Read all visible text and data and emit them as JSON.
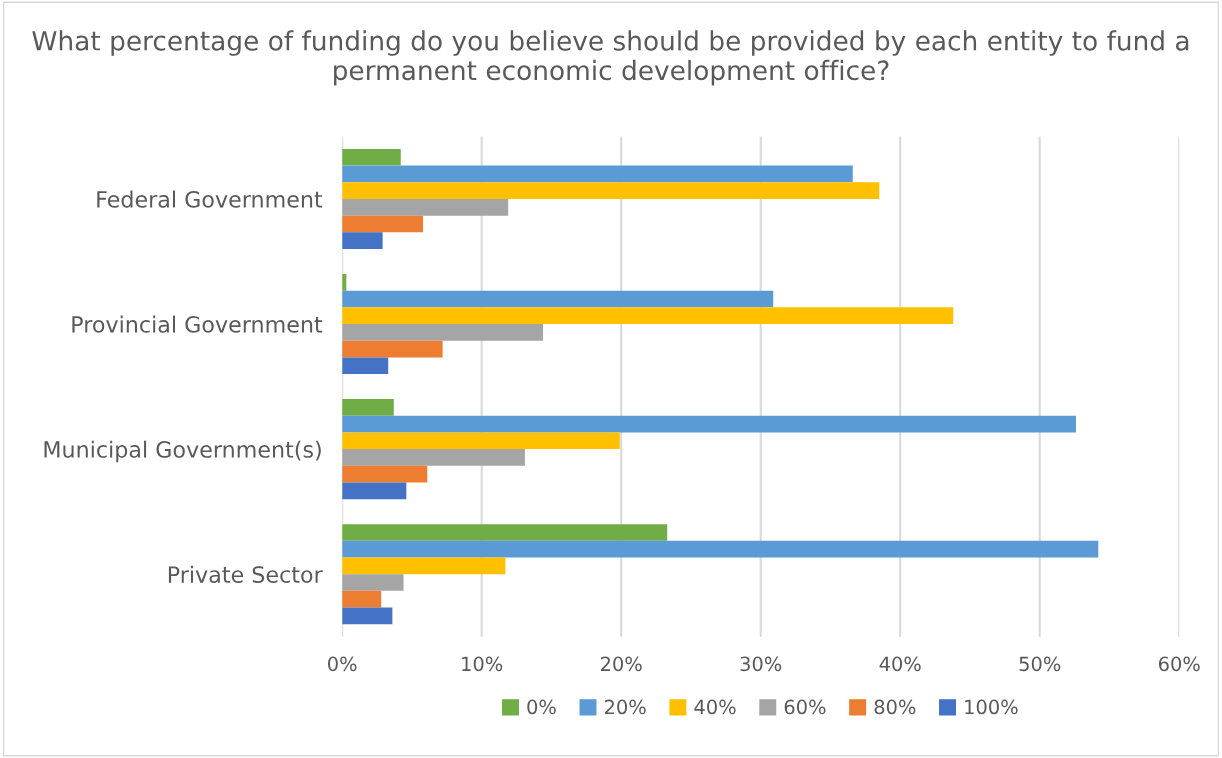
{
  "chart_data": {
    "type": "bar",
    "orientation": "horizontal",
    "title": "What percentage of funding do you believe should be provided by each entity to fund a permanent economic development office?",
    "categories": [
      "Federal Government",
      "Provincial Government",
      "Municipal Government(s)",
      "Private Sector"
    ],
    "series": [
      {
        "name": "0%",
        "color": "#70ad47",
        "values": [
          4.2,
          0.3,
          3.7,
          23.3
        ]
      },
      {
        "name": "20%",
        "color": "#5b9bd5",
        "values": [
          36.6,
          30.9,
          52.6,
          54.2
        ]
      },
      {
        "name": "40%",
        "color": "#ffc000",
        "values": [
          38.5,
          43.8,
          19.9,
          11.7
        ]
      },
      {
        "name": "60%",
        "color": "#a5a5a5",
        "values": [
          11.9,
          14.4,
          13.1,
          4.4
        ]
      },
      {
        "name": "80%",
        "color": "#ed7d31",
        "values": [
          5.8,
          7.2,
          6.1,
          2.8
        ]
      },
      {
        "name": "100%",
        "color": "#4472c4",
        "values": [
          2.9,
          3.3,
          4.6,
          3.6
        ]
      }
    ],
    "xlim": [
      0,
      60
    ],
    "xticks": [
      {
        "value": 0,
        "label": "0%"
      },
      {
        "value": 10,
        "label": "10%"
      },
      {
        "value": 20,
        "label": "20%"
      },
      {
        "value": 30,
        "label": "30%"
      },
      {
        "value": 40,
        "label": "40%"
      },
      {
        "value": 50,
        "label": "50%"
      },
      {
        "value": 60,
        "label": "60%"
      }
    ],
    "grid": "x",
    "legend": "bottom"
  }
}
